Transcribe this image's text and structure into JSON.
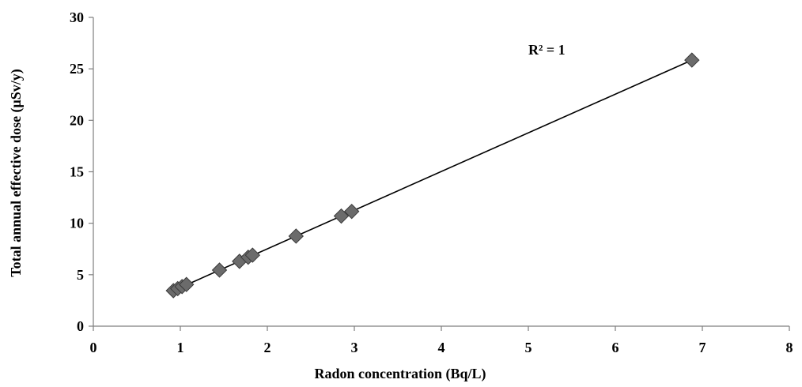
{
  "chart_data": {
    "type": "scatter",
    "xlabel": "Radon concentration (Bq/L)",
    "ylabel": "Total annual effective dose (μSv/y)",
    "xlim": [
      0,
      8
    ],
    "ylim": [
      0,
      30
    ],
    "x_ticks": [
      0,
      1,
      2,
      3,
      4,
      5,
      6,
      7,
      8
    ],
    "y_ticks": [
      0,
      5,
      10,
      15,
      20,
      25,
      30
    ],
    "grid": false,
    "annotation": "R² = 1",
    "marker_color": "#6b6b6b",
    "trendline": {
      "x": [
        0.92,
        6.88
      ],
      "y": [
        3.45,
        25.85
      ]
    },
    "series": [
      {
        "x": [
          0.92,
          0.97,
          1.02,
          1.07,
          1.45,
          1.68,
          1.78,
          1.83,
          2.33,
          2.85,
          2.97,
          6.88
        ],
        "y": [
          3.45,
          3.65,
          3.85,
          4.05,
          5.45,
          6.3,
          6.7,
          6.9,
          8.75,
          10.7,
          11.15,
          25.85
        ]
      }
    ]
  }
}
